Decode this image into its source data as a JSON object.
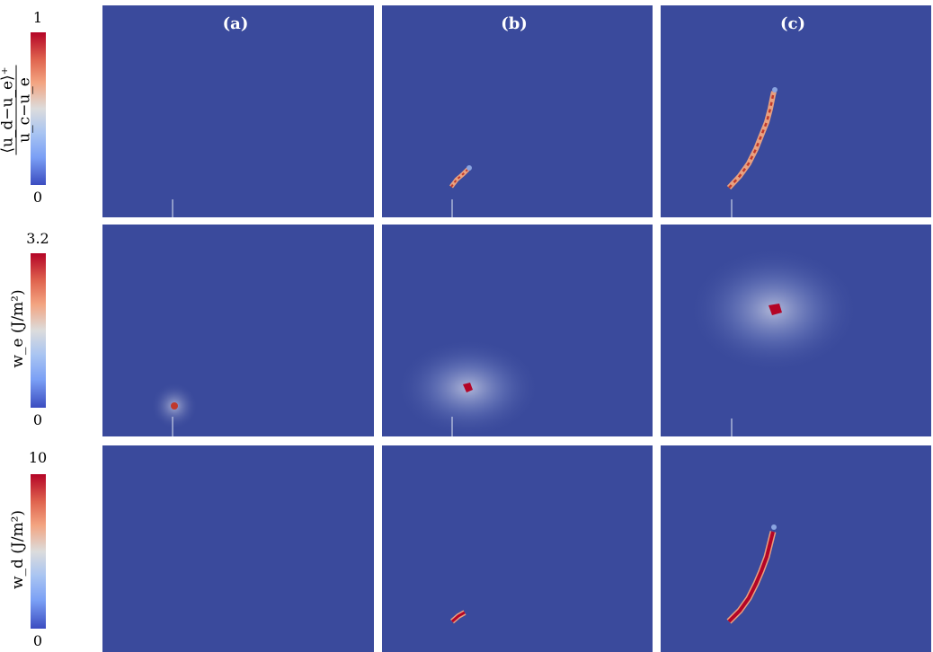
{
  "columns": [
    "(a)",
    "(b)",
    "(c)"
  ],
  "rows": [
    {
      "field": "damage_ratio",
      "colorbar": {
        "max": "1",
        "min": "0"
      },
      "label_num": "⟨u_d−u_e⟩⁺",
      "label_den": "u_c−u_e"
    },
    {
      "field": "w_e",
      "colorbar": {
        "max": "3.2",
        "min": "0"
      },
      "label": "w_e (J/m²)"
    },
    {
      "field": "w_d",
      "colorbar": {
        "max": "10",
        "min": "0"
      },
      "label": "w_d (J/m²)"
    }
  ],
  "colormap": [
    "#3b4cc0",
    "#7a9ff5",
    "#dcdcdc",
    "#f3a481",
    "#b40426"
  ],
  "background_color": "#3a4a9c"
}
